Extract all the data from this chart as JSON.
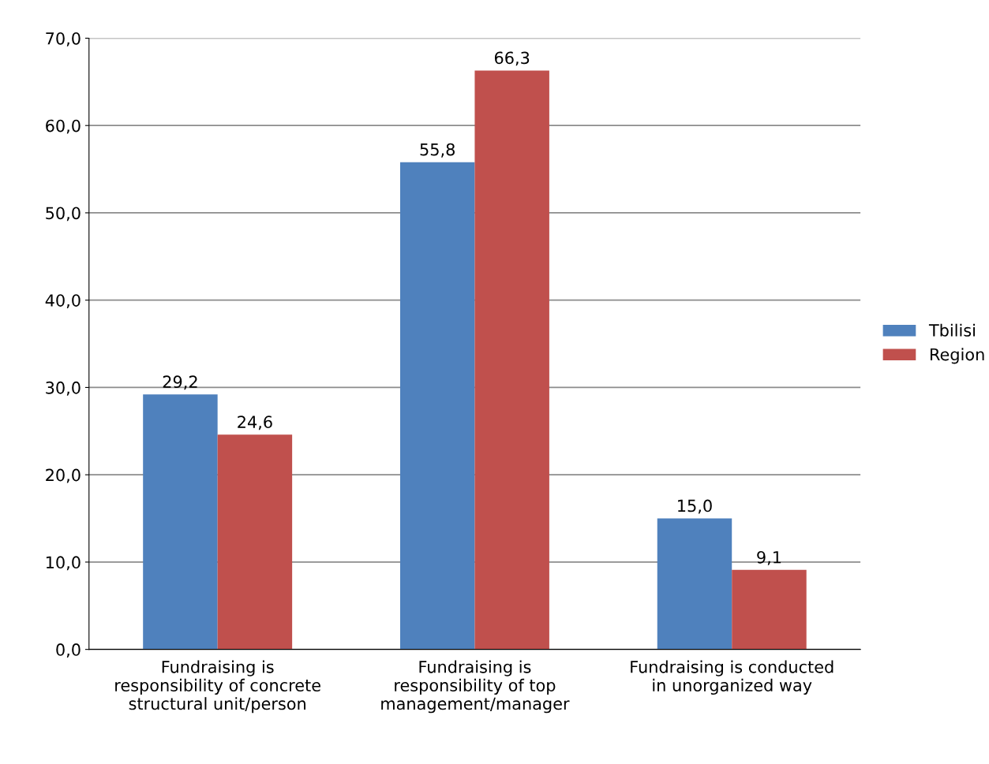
{
  "chart_data": {
    "type": "bar",
    "categories": [
      "Fundraising is\nresponsibility of concrete\nstructural unit/person",
      "Fundraising is\nresponsibility of top\nmanagement/manager",
      "Fundraising is conducted\nin unorganized way"
    ],
    "series": [
      {
        "name": "Tbilisi",
        "color": "#4f81bd",
        "values": [
          29.2,
          55.8,
          15.0
        ],
        "value_labels": [
          "29,2",
          "55,8",
          "15,0"
        ]
      },
      {
        "name": "Region",
        "color": "#c0504d",
        "values": [
          24.6,
          66.3,
          9.1
        ],
        "value_labels": [
          "24,6",
          "66,3",
          "9,1"
        ]
      }
    ],
    "ylim": [
      0,
      70
    ],
    "yticks": [
      {
        "value": 0,
        "label": "0,0"
      },
      {
        "value": 10,
        "label": "10,0"
      },
      {
        "value": 20,
        "label": "20,0"
      },
      {
        "value": 30,
        "label": "30,0"
      },
      {
        "value": 40,
        "label": "40,0"
      },
      {
        "value": 50,
        "label": "50,0"
      },
      {
        "value": 60,
        "label": "60,0"
      },
      {
        "value": 70,
        "label": "70,0"
      }
    ],
    "grid": "y",
    "legend": "right"
  }
}
